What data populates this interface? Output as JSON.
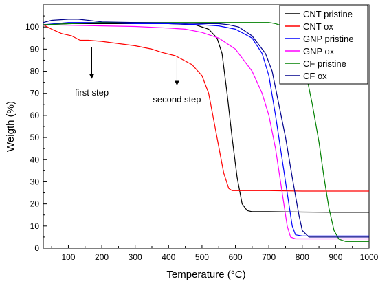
{
  "chart_data": {
    "type": "line",
    "xlabel": "Temperature (°C)",
    "ylabel": "Weigth (%)",
    "xlim": [
      25,
      1000
    ],
    "ylim": [
      0,
      110
    ],
    "x_ticks": [
      100,
      200,
      300,
      400,
      500,
      600,
      700,
      800,
      900,
      1000
    ],
    "y_ticks": [
      0,
      10,
      20,
      30,
      40,
      50,
      60,
      70,
      80,
      90,
      100
    ],
    "grid": false,
    "legend_position": "top-right",
    "series": [
      {
        "name": "CNT pristine",
        "color": "#000000",
        "points": [
          [
            25,
            101
          ],
          [
            100,
            101.5
          ],
          [
            200,
            101.5
          ],
          [
            300,
            101.5
          ],
          [
            400,
            101.5
          ],
          [
            480,
            101
          ],
          [
            520,
            99
          ],
          [
            545,
            95
          ],
          [
            560,
            88
          ],
          [
            575,
            70
          ],
          [
            590,
            50
          ],
          [
            605,
            32
          ],
          [
            620,
            20
          ],
          [
            635,
            17
          ],
          [
            650,
            16.5
          ],
          [
            700,
            16.5
          ],
          [
            800,
            16.3
          ],
          [
            900,
            16.2
          ],
          [
            1000,
            16.2
          ]
        ]
      },
      {
        "name": "CNT ox",
        "color": "#ff0000",
        "points": [
          [
            25,
            101
          ],
          [
            50,
            99
          ],
          [
            80,
            97
          ],
          [
            110,
            96
          ],
          [
            135,
            94
          ],
          [
            160,
            94
          ],
          [
            200,
            93.5
          ],
          [
            300,
            91.5
          ],
          [
            350,
            90
          ],
          [
            380,
            88.5
          ],
          [
            420,
            87
          ],
          [
            470,
            83
          ],
          [
            500,
            78
          ],
          [
            520,
            70
          ],
          [
            535,
            58
          ],
          [
            550,
            46
          ],
          [
            565,
            34
          ],
          [
            580,
            27
          ],
          [
            590,
            26
          ],
          [
            600,
            26
          ],
          [
            700,
            26
          ],
          [
            800,
            25.8
          ],
          [
            900,
            25.8
          ],
          [
            1000,
            25.8
          ]
        ]
      },
      {
        "name": "GNP pristine",
        "color": "#0000ff",
        "points": [
          [
            25,
            101
          ],
          [
            100,
            102
          ],
          [
            200,
            102
          ],
          [
            300,
            101.5
          ],
          [
            400,
            101.5
          ],
          [
            500,
            101
          ],
          [
            550,
            100.5
          ],
          [
            600,
            99
          ],
          [
            650,
            95
          ],
          [
            680,
            88
          ],
          [
            700,
            78
          ],
          [
            720,
            60
          ],
          [
            740,
            40
          ],
          [
            760,
            20
          ],
          [
            770,
            10
          ],
          [
            780,
            6
          ],
          [
            800,
            5.5
          ],
          [
            900,
            5.5
          ],
          [
            1000,
            5.5
          ]
        ]
      },
      {
        "name": "GNP ox",
        "color": "#ff00ff",
        "points": [
          [
            25,
            101
          ],
          [
            100,
            100.8
          ],
          [
            200,
            100.5
          ],
          [
            300,
            100.2
          ],
          [
            400,
            99.5
          ],
          [
            450,
            99
          ],
          [
            500,
            97.5
          ],
          [
            550,
            95
          ],
          [
            600,
            90
          ],
          [
            650,
            80
          ],
          [
            680,
            70
          ],
          [
            700,
            60
          ],
          [
            720,
            45
          ],
          [
            740,
            25
          ],
          [
            755,
            10
          ],
          [
            765,
            5
          ],
          [
            780,
            4.2
          ],
          [
            900,
            4.2
          ],
          [
            1000,
            4.2
          ]
        ]
      },
      {
        "name": "CF pristine",
        "color": "#008000",
        "points": [
          [
            25,
            101
          ],
          [
            200,
            102
          ],
          [
            400,
            102
          ],
          [
            600,
            102
          ],
          [
            700,
            102
          ],
          [
            720,
            101.5
          ],
          [
            750,
            100
          ],
          [
            770,
            97
          ],
          [
            790,
            90
          ],
          [
            810,
            80
          ],
          [
            830,
            65
          ],
          [
            850,
            48
          ],
          [
            865,
            32
          ],
          [
            880,
            18
          ],
          [
            895,
            8
          ],
          [
            910,
            4
          ],
          [
            930,
            3
          ],
          [
            1000,
            3
          ]
        ]
      },
      {
        "name": "CF ox",
        "color": "#00008b",
        "points": [
          [
            25,
            102
          ],
          [
            50,
            103
          ],
          [
            100,
            103.5
          ],
          [
            130,
            103.5
          ],
          [
            160,
            103
          ],
          [
            200,
            102.3
          ],
          [
            300,
            102
          ],
          [
            400,
            101.8
          ],
          [
            500,
            101.5
          ],
          [
            550,
            101.5
          ],
          [
            580,
            101
          ],
          [
            610,
            100
          ],
          [
            650,
            96
          ],
          [
            690,
            88
          ],
          [
            710,
            80
          ],
          [
            730,
            65
          ],
          [
            750,
            50
          ],
          [
            770,
            32
          ],
          [
            790,
            15
          ],
          [
            800,
            8
          ],
          [
            820,
            5
          ],
          [
            900,
            5
          ],
          [
            1000,
            5
          ]
        ]
      }
    ],
    "annotations": [
      {
        "text": "first step",
        "arrow_x": 170,
        "arrow_y_from": 91,
        "arrow_y_to": 77
      },
      {
        "text": "second step",
        "arrow_x": 425,
        "arrow_y_from": 86,
        "arrow_y_to": 74
      }
    ]
  }
}
